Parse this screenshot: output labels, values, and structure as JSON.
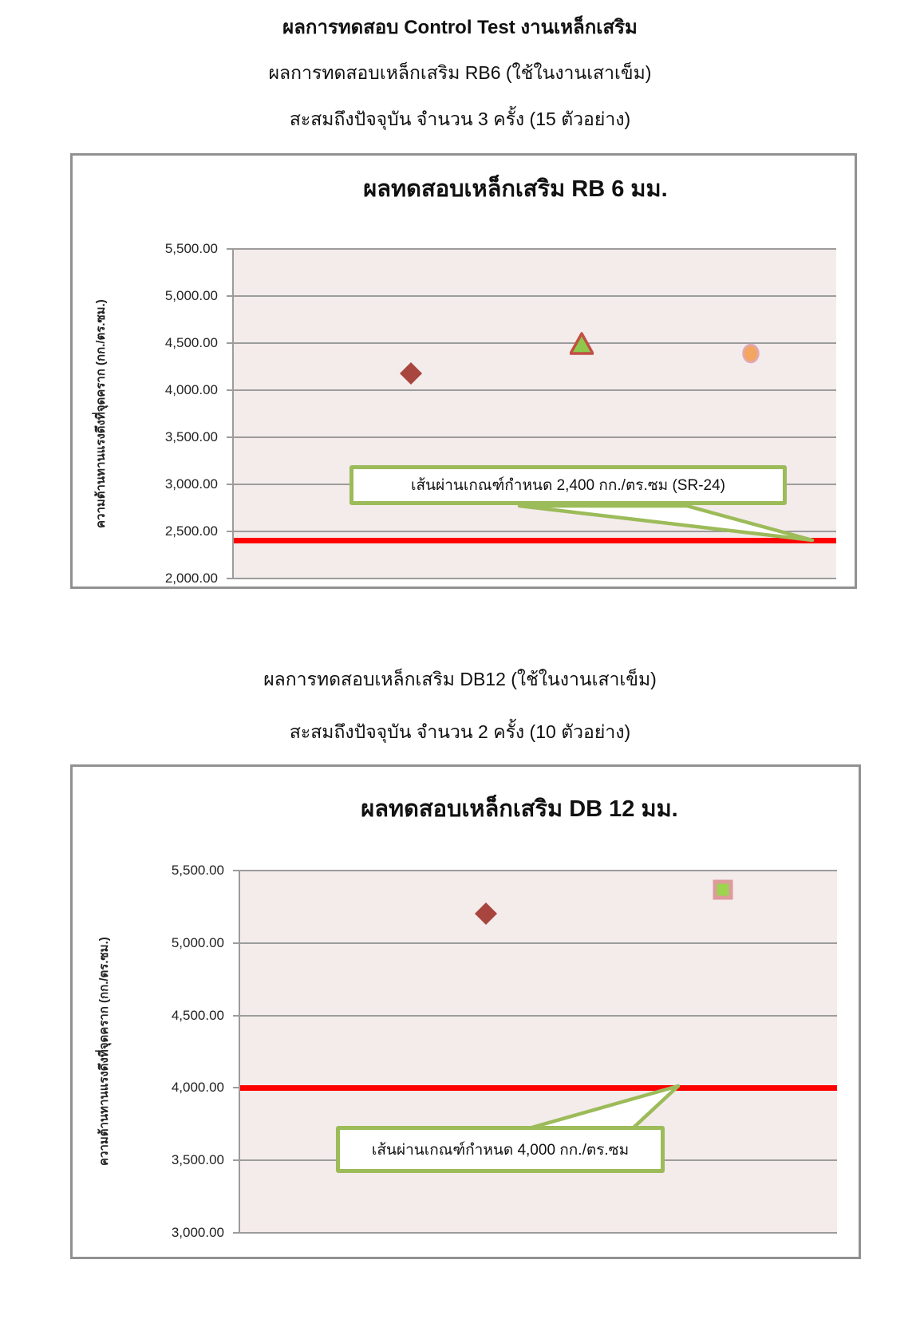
{
  "page": {
    "heading1": "ผลการทดสอบ Control Test งานเหล็กเสริม",
    "heading2": "ผลการทดสอบเหล็กเสริม RB6 (ใช้ในงานเสาเข็ม)",
    "heading3": "สะสมถึงปัจจุบัน จำนวน 3 ครั้ง (15 ตัวอย่าง)",
    "heading4": "ผลการทดสอบเหล็กเสริม DB12 (ใช้ในงานเสาเข็ม)",
    "heading5": "สะสมถึงปัจจุบัน จำนวน 2 ครั้ง (10 ตัวอย่าง)"
  },
  "colors": {
    "plot_background": "#F4EBEB",
    "gridline": "#9C9C9C",
    "chart_border": "#919191",
    "limit_line_red": "#FE0000",
    "callout_border_green": "#9CBB59",
    "diamond_red": "#A8453E",
    "triangle_green": "#8DC74B",
    "triangle_border_red": "#C24F44",
    "circle_orange": "#F4A55F",
    "circle_border_pink": "#DFA9BB",
    "square_green": "#9CD34F",
    "square_border_salmon": "#DD9B9B"
  },
  "chart_data": [
    {
      "type": "scatter",
      "title": "ผลทดสอบเหล็กเสริม RB 6 มม.",
      "xlabel": "",
      "ylabel": "ความต้านทานแรงดึงที่จุดคราก  (กก./ตร.ซม.)",
      "ylim": [
        2000,
        5500
      ],
      "ytick_step": 500,
      "grid": true,
      "legend": "none",
      "yticks": [
        {
          "value": 5500,
          "label": "5,500.00"
        },
        {
          "value": 5000,
          "label": "5,000.00"
        },
        {
          "value": 4500,
          "label": "4,500.00"
        },
        {
          "value": 4000,
          "label": "4,000.00"
        },
        {
          "value": 3500,
          "label": "3,500.00"
        },
        {
          "value": 3000,
          "label": "3,000.00"
        },
        {
          "value": 2500,
          "label": "2,500.00"
        },
        {
          "value": 2000,
          "label": "2,000.00"
        }
      ],
      "points": [
        {
          "marker": "diamond",
          "fill": "#A8453E",
          "stroke": "#A8453E",
          "x_frac": 0.293,
          "value": 4180
        },
        {
          "marker": "triangle",
          "fill": "#8DC74B",
          "stroke": "#C24F44",
          "x_frac": 0.576,
          "value": 4500
        },
        {
          "marker": "circle",
          "fill": "#F4A55F",
          "stroke": "#DFA9BB",
          "x_frac": 0.856,
          "value": 4390
        }
      ],
      "limit_line": {
        "value": 2400,
        "color": "#FE0000",
        "label": "เส้นผ่านเกณฑ์กำหนด 2,400 กก./ตร.ซม (SR-24)"
      }
    },
    {
      "type": "scatter",
      "title": "ผลทดสอบเหล็กเสริม DB 12 มม.",
      "xlabel": "",
      "ylabel": "ความต้านทานแรงดึงที่จุดคราก  (กก./ตร.ซม.)",
      "ylim": [
        3000,
        5500
      ],
      "ytick_step": 500,
      "grid": true,
      "legend": "none",
      "yticks": [
        {
          "value": 5500,
          "label": "5,500.00"
        },
        {
          "value": 5000,
          "label": "5,000.00"
        },
        {
          "value": 4500,
          "label": "4,500.00"
        },
        {
          "value": 4000,
          "label": "4,000.00"
        },
        {
          "value": 3500,
          "label": "3,500.00"
        },
        {
          "value": 3000,
          "label": "3,000.00"
        }
      ],
      "points": [
        {
          "marker": "diamond",
          "fill": "#A8453E",
          "stroke": "#A8453E",
          "x_frac": 0.41,
          "value": 5200
        },
        {
          "marker": "square",
          "fill": "#9CD34F",
          "stroke": "#DD9B9B",
          "x_frac": 0.806,
          "value": 5370
        }
      ],
      "limit_line": {
        "value": 4000,
        "color": "#FE0000",
        "label": "เส้นผ่านเกณฑ์กำหนด 4,000 กก./ตร.ซม"
      }
    }
  ]
}
